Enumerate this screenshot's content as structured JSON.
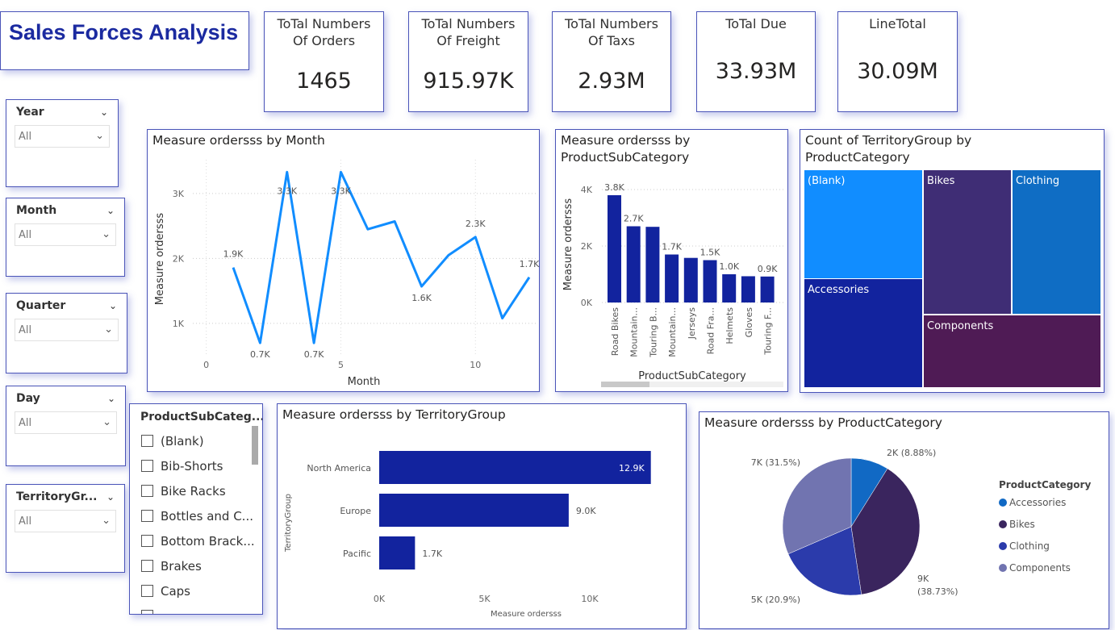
{
  "title": "Sales  Forces Analysis",
  "kpis": [
    {
      "label": "ToTal Numbers Of Orders",
      "value": "1465"
    },
    {
      "label": "ToTal Numbers Of Freight",
      "value": "915.97K"
    },
    {
      "label": "ToTal Numbers Of Taxs",
      "value": "2.93M"
    },
    {
      "label": "ToTal Due",
      "value": "33.93M"
    },
    {
      "label": "LineTotal",
      "value": "30.09M"
    }
  ],
  "slicers": [
    {
      "label": "Year",
      "value": "All"
    },
    {
      "label": "Month",
      "value": "All"
    },
    {
      "label": "Quarter",
      "value": "All"
    },
    {
      "label": "Day",
      "value": "All"
    },
    {
      "label": "TerritoryGr...",
      "value": "All"
    }
  ],
  "list_slicer": {
    "label": "ProductSubCateg...",
    "items": [
      "(Blank)",
      "Bib-Shorts",
      "Bike Racks",
      "Bottles and C...",
      "Bottom Brack...",
      "Brakes",
      "Caps"
    ]
  },
  "chart_data": [
    {
      "type": "line",
      "title": "Measure ordersss by Month",
      "xlabel": "Month",
      "ylabel": "Measure ordersss",
      "color": "#118DFF",
      "x": [
        1,
        2,
        3,
        4,
        5,
        6,
        7,
        8,
        9,
        10,
        11,
        12
      ],
      "values": [
        1860,
        700,
        3330,
        700,
        3330,
        2450,
        2570,
        1570,
        2050,
        2330,
        1080,
        1710
      ],
      "data_labels": {
        "1": "1.9K",
        "2": "0.7K",
        "3": "3.3K",
        "4": "0.7K",
        "5": "3.3K",
        "8": "1.6K",
        "10": "2.3K",
        "12": "1.7K"
      },
      "xticks": [
        "0",
        "5",
        "10"
      ],
      "yticks": [
        "1K",
        "2K",
        "3K"
      ],
      "xlim": [
        -0.2,
        12.3
      ],
      "ylim": [
        490,
        3520
      ],
      "grid": true
    },
    {
      "type": "bar",
      "title": "Measure ordersss by ProductSubCategory",
      "xlabel": "ProductSubCategory",
      "ylabel": "Measure ordersss",
      "color": "#12239E",
      "categories": [
        "Road Bikes",
        "Mountain...",
        "Touring B...",
        "Mountain...",
        "Jerseys",
        "Road Fra...",
        "Helmets",
        "Gloves",
        "Touring F..."
      ],
      "values": [
        3800,
        2700,
        2680,
        1700,
        1580,
        1500,
        1000,
        930,
        920
      ],
      "data_labels": [
        "3.8K",
        "2.7K",
        "",
        "1.7K",
        "",
        "1.5K",
        "1.0K",
        "",
        "0.9K"
      ],
      "yticks": [
        "0K",
        "2K",
        "4K"
      ],
      "ylim": [
        0,
        4000
      ],
      "grid": true
    },
    {
      "type": "treemap",
      "title": "Count of TerritoryGroup by ProductCategory",
      "categories": [
        "(Blank)",
        "Bikes",
        "Clothing",
        "Accessories",
        "Components"
      ],
      "colors": [
        "#118DFF",
        "#3F2D75",
        "#0F6DC4",
        "#12239E",
        "#4F1B55"
      ]
    },
    {
      "type": "bar",
      "orientation": "horizontal",
      "title": "Measure ordersss by TerritoryGroup",
      "xlabel": "Measure ordersss",
      "ylabel": "TerritoryGroup",
      "color": "#12239E",
      "categories": [
        "North America",
        "Europe",
        "Pacific"
      ],
      "values": [
        12900,
        9000,
        1700
      ],
      "data_labels": [
        "12.9K",
        "9.0K",
        "1.7K"
      ],
      "xticks": [
        "0K",
        "5K",
        "10K"
      ],
      "xlim": [
        0,
        13000
      ]
    },
    {
      "type": "pie",
      "title": "Measure ordersss by ProductCategory",
      "legend_title": "ProductCategory",
      "legend": "right",
      "categories": [
        "Accessories",
        "Bikes",
        "Clothing",
        "Components"
      ],
      "values": [
        8.88,
        38.73,
        20.9,
        31.5
      ],
      "data_labels": [
        "2K (8.88%)",
        "9K (38.73%)",
        "5K (20.9%)",
        "7K (31.5%)"
      ],
      "colors": [
        "#1169C4",
        "#3A255E",
        "#2B3BAB",
        "#7174B0"
      ]
    }
  ]
}
